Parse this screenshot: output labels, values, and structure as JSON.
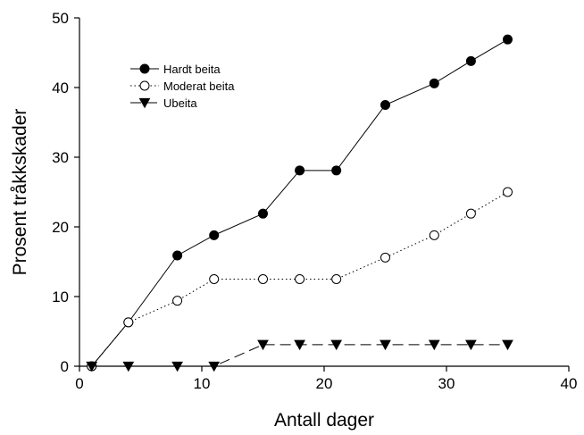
{
  "chart_data": {
    "type": "line",
    "xlabel": "Antall dager",
    "ylabel": "Prosent tråkkskader",
    "xlim": [
      0,
      40
    ],
    "ylim": [
      0,
      50
    ],
    "xticks": [
      0,
      10,
      20,
      30,
      40
    ],
    "yticks": [
      0,
      10,
      20,
      30,
      40,
      50
    ],
    "grid": false,
    "legend_position": "top-left",
    "series": [
      {
        "name": "Hardt beita",
        "marker": "filled-circle",
        "line_style": "solid",
        "x": [
          1,
          4,
          8,
          11,
          15,
          18,
          21,
          25,
          29,
          32,
          35
        ],
        "y": [
          0,
          6.3,
          15.9,
          18.8,
          21.9,
          28.1,
          28.1,
          37.5,
          40.6,
          43.8,
          46.9
        ]
      },
      {
        "name": "Moderat beita",
        "marker": "open-circle",
        "line_style": "dotted",
        "x": [
          1,
          4,
          8,
          11,
          15,
          18,
          21,
          25,
          29,
          32,
          35
        ],
        "y": [
          0,
          6.3,
          9.4,
          12.5,
          12.5,
          12.5,
          12.5,
          15.6,
          18.8,
          21.9,
          25
        ]
      },
      {
        "name": "Ubeita",
        "marker": "filled-triangle-down",
        "line_style": "dashed",
        "x": [
          1,
          4,
          8,
          11,
          15,
          18,
          21,
          25,
          29,
          32,
          35
        ],
        "y": [
          0,
          0,
          0,
          0,
          3.1,
          3.1,
          3.1,
          3.1,
          3.1,
          3.1,
          3.1
        ]
      }
    ]
  }
}
